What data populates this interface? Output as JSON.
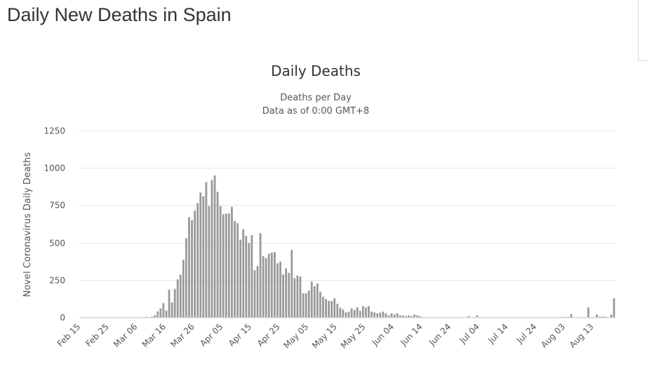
{
  "page_title": "Daily New Deaths in Spain",
  "chart_data": {
    "type": "bar",
    "title": "Daily Deaths",
    "subtitle": [
      "Deaths per Day",
      "Data as of 0:00 GMT+8"
    ],
    "xlabel": "",
    "ylabel": "Novel Coronavirus Daily Deaths",
    "ylim": [
      0,
      1250
    ],
    "yticks": [
      0,
      250,
      500,
      750,
      1000,
      1250
    ],
    "grid": true,
    "color": "#999999",
    "start_date": "Feb 15",
    "xtick_labels": [
      "Feb 15",
      "Feb 25",
      "Mar 06",
      "Mar 16",
      "Mar 26",
      "Apr 05",
      "Apr 15",
      "Apr 25",
      "May 05",
      "May 15",
      "May 25",
      "Jun 04",
      "Jun 14",
      "Jun 24",
      "Jul 04",
      "Jul 14",
      "Jul 24",
      "Aug 03",
      "Aug 13"
    ],
    "xtick_every_days": 10,
    "values": [
      0,
      0,
      0,
      0,
      0,
      0,
      0,
      0,
      0,
      0,
      0,
      0,
      0,
      0,
      0,
      0,
      0,
      0,
      0,
      0,
      0,
      0,
      0,
      3,
      0,
      5,
      15,
      40,
      60,
      95,
      45,
      185,
      100,
      190,
      255,
      285,
      385,
      530,
      670,
      650,
      715,
      765,
      835,
      810,
      905,
      745,
      920,
      950,
      840,
      745,
      690,
      695,
      695,
      740,
      645,
      630,
      520,
      590,
      545,
      498,
      550,
      315,
      343,
      563,
      409,
      397,
      426,
      433,
      437,
      362,
      373,
      287,
      328,
      298,
      451,
      262,
      279,
      273,
      161,
      161,
      179,
      240,
      208,
      226,
      172,
      138,
      122,
      110,
      110,
      127,
      91,
      64,
      52,
      33,
      38,
      60,
      50,
      67,
      44,
      75,
      66,
      75,
      38,
      33,
      27,
      31,
      38,
      27,
      13,
      27,
      19,
      27,
      13,
      13,
      8,
      13,
      8,
      19,
      13,
      8,
      0,
      0,
      0,
      0,
      0,
      0,
      0,
      0,
      0,
      0,
      0,
      0,
      0,
      0,
      0,
      0,
      8,
      0,
      0,
      13,
      0,
      0,
      0,
      0,
      0,
      0,
      0,
      0,
      0,
      0,
      0,
      0,
      0,
      0,
      0,
      0,
      0,
      0,
      0,
      0,
      0,
      0,
      0,
      0,
      0,
      0,
      0,
      0,
      0,
      3,
      3,
      3,
      22,
      0,
      0,
      0,
      0,
      0,
      67,
      0,
      0,
      19,
      5,
      5,
      5,
      0,
      19,
      127
    ]
  }
}
